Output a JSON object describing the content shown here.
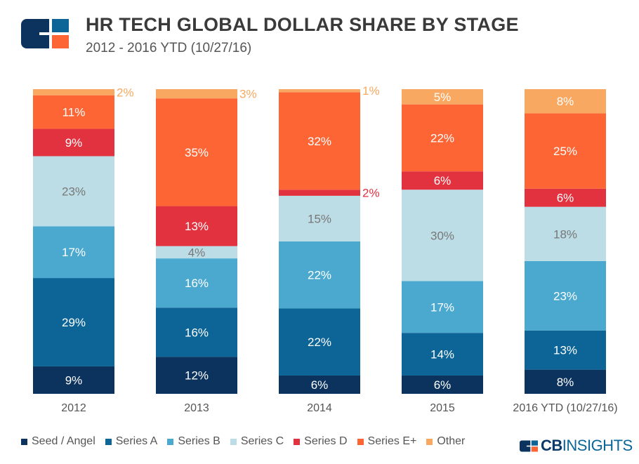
{
  "header": {
    "title": "HR TECH GLOBAL DOLLAR SHARE BY STAGE",
    "subtitle": "2012 - 2016 YTD (10/27/16)"
  },
  "brand": {
    "name_bold": "CB",
    "name_rest": "INSIGHTS"
  },
  "chart_data": {
    "type": "bar",
    "stacked": true,
    "title": "HR TECH GLOBAL DOLLAR SHARE BY STAGE",
    "subtitle": "2012 - 2016 YTD (10/27/16)",
    "categories": [
      "2012",
      "2013",
      "2014",
      "2015",
      "2016 YTD (10/27/16)"
    ],
    "ylim": [
      0,
      100
    ],
    "grid": false,
    "legend_position": "bottom",
    "series": [
      {
        "name": "Seed / Angel",
        "color": "#0b335e",
        "values": [
          9,
          12,
          6,
          6,
          8
        ]
      },
      {
        "name": "Series A",
        "color": "#0d6496",
        "values": [
          29,
          16,
          22,
          14,
          13
        ]
      },
      {
        "name": "Series B",
        "color": "#4ba9d0",
        "values": [
          17,
          16,
          22,
          17,
          23
        ]
      },
      {
        "name": "Series C",
        "color": "#bcdde6",
        "values": [
          23,
          4,
          15,
          30,
          18
        ]
      },
      {
        "name": "Series D",
        "color": "#e3323f",
        "values": [
          9,
          13,
          2,
          6,
          6
        ]
      },
      {
        "name": "Series E+",
        "color": "#fd6634",
        "values": [
          11,
          35,
          32,
          22,
          25
        ]
      },
      {
        "name": "Other",
        "color": "#f8a860",
        "values": [
          2,
          3,
          1,
          5,
          8
        ]
      }
    ]
  }
}
